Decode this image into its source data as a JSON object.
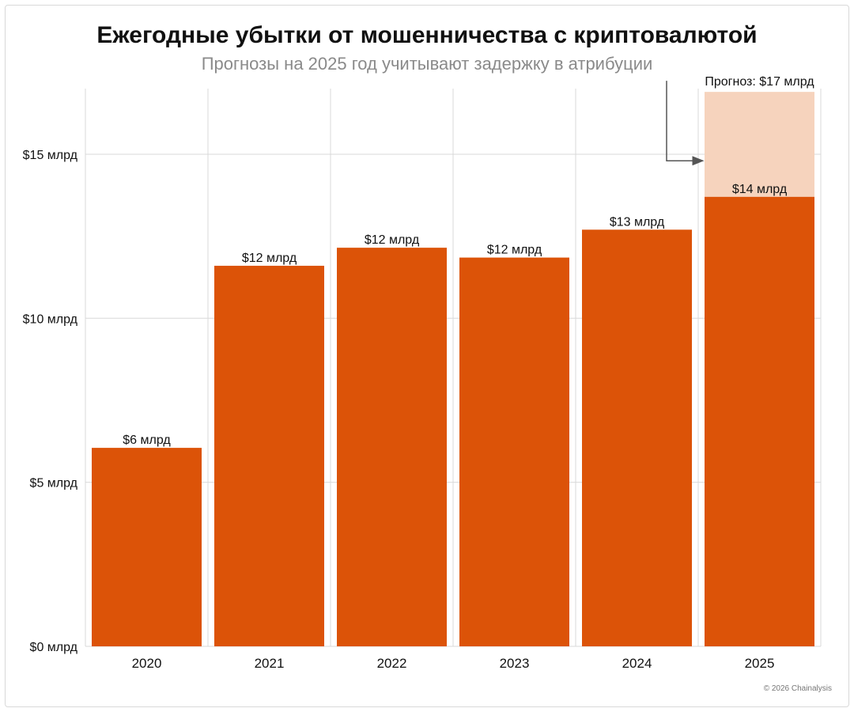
{
  "title": "Ежегодные убытки от мошенничества с криптовалютой",
  "subtitle": "Прогнозы на 2025 год учитывают задержку в атрибуции",
  "footer": "© 2026 Chainalysis",
  "colors": {
    "bar": "#dc5308",
    "projection": "#f6d3bd",
    "grid": "#d9d9d9",
    "text": "#111111",
    "arrow": "#555555"
  },
  "chart_data": {
    "type": "bar",
    "categories": [
      "2020",
      "2021",
      "2022",
      "2023",
      "2024",
      "2025"
    ],
    "values": [
      6.05,
      11.6,
      12.15,
      11.85,
      12.7,
      13.7
    ],
    "value_labels": [
      "$6 млрд",
      "$12 млрд",
      "$12 млрд",
      "$12 млрд",
      "$13 млрд",
      "$14 млрд"
    ],
    "projection": {
      "category": "2025",
      "value": 16.9,
      "label": "Прогноз: $17 млрд"
    },
    "ylim": [
      0,
      17
    ],
    "yticks": [
      0,
      5,
      10,
      15
    ],
    "ytick_labels": [
      "$0 млрд",
      "$5 млрд",
      "$10 млрд",
      "$15 млрд"
    ],
    "xlabel": "",
    "ylabel": "",
    "grid": true
  }
}
